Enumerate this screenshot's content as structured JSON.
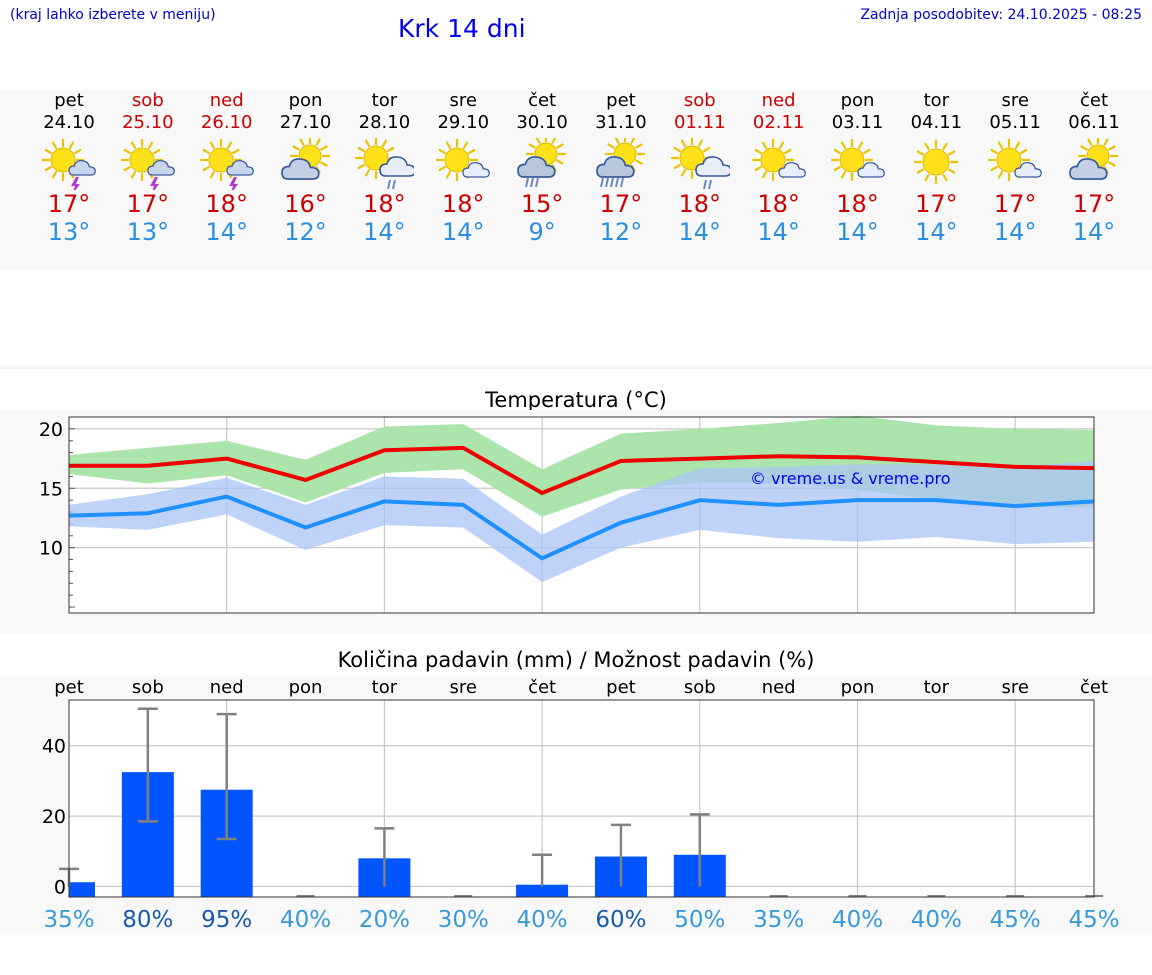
{
  "header": {
    "menu_hint": "(kraj lahko izberete v meniju)",
    "title": "Krk 14 dni",
    "updated": "Zadnja posodobitev: 24.10.2025 - 08:25"
  },
  "days": [
    {
      "name": "pet",
      "date": "24.10",
      "weekend": false,
      "icon": "sun-cloud-thunder-icon",
      "tmax": "17°",
      "tmin": "13°"
    },
    {
      "name": "sob",
      "date": "25.10",
      "weekend": true,
      "icon": "sun-cloud-thunder-icon",
      "tmax": "17°",
      "tmin": "13°"
    },
    {
      "name": "ned",
      "date": "26.10",
      "weekend": true,
      "icon": "sun-cloud-thunder-icon",
      "tmax": "18°",
      "tmin": "14°"
    },
    {
      "name": "pon",
      "date": "27.10",
      "weekend": false,
      "icon": "cloud-sun-icon",
      "tmax": "16°",
      "tmin": "12°"
    },
    {
      "name": "tor",
      "date": "28.10",
      "weekend": false,
      "icon": "sun-cloud-rain-icon",
      "tmax": "18°",
      "tmin": "14°"
    },
    {
      "name": "sre",
      "date": "29.10",
      "weekend": false,
      "icon": "sun-small-cloud-icon",
      "tmax": "18°",
      "tmin": "14°"
    },
    {
      "name": "čet",
      "date": "30.10",
      "weekend": false,
      "icon": "cloud-sun-rain-icon",
      "tmax": "15°",
      "tmin": "9°"
    },
    {
      "name": "pet",
      "date": "31.10",
      "weekend": false,
      "icon": "cloud-sun-heavy-rain-icon",
      "tmax": "17°",
      "tmin": "12°"
    },
    {
      "name": "sob",
      "date": "01.11",
      "weekend": true,
      "icon": "sun-cloud-rain-icon",
      "tmax": "18°",
      "tmin": "14°"
    },
    {
      "name": "ned",
      "date": "02.11",
      "weekend": true,
      "icon": "sun-small-cloud-icon",
      "tmax": "18°",
      "tmin": "14°"
    },
    {
      "name": "pon",
      "date": "03.11",
      "weekend": false,
      "icon": "sun-small-cloud-icon",
      "tmax": "18°",
      "tmin": "14°"
    },
    {
      "name": "tor",
      "date": "04.11",
      "weekend": false,
      "icon": "sun-icon",
      "tmax": "17°",
      "tmin": "14°"
    },
    {
      "name": "sre",
      "date": "05.11",
      "weekend": false,
      "icon": "sun-small-cloud-icon",
      "tmax": "17°",
      "tmin": "14°"
    },
    {
      "name": "čet",
      "date": "06.11",
      "weekend": false,
      "icon": "cloud-sun-icon",
      "tmax": "17°",
      "tmin": "14°"
    }
  ],
  "colors": {
    "max_line": "#ee0000",
    "max_band": "#a8e4a8",
    "min_line": "#1e90ff",
    "min_band": "#a9c4f5",
    "bar": "#0055ff",
    "whisker": "#808080",
    "pct_low": "#3a9ad9",
    "pct_high": "#1a5aaa"
  },
  "chart_data": [
    {
      "type": "line",
      "title": "Temperatura (°C)",
      "watermark": "© vreme.us & vreme.pro",
      "x": [
        0,
        1,
        2,
        3,
        4,
        5,
        6,
        7,
        8,
        9,
        10,
        11,
        12,
        13
      ],
      "ylim": [
        4.5,
        21
      ],
      "yticks": [
        10,
        15,
        20
      ],
      "series": [
        {
          "name": "max",
          "values": [
            16.9,
            16.9,
            17.5,
            15.7,
            18.2,
            18.4,
            14.6,
            17.3,
            17.5,
            17.7,
            17.6,
            17.2,
            16.8,
            16.7
          ],
          "band_low": [
            16.2,
            15.4,
            16.1,
            13.8,
            16.3,
            16.6,
            12.6,
            14.9,
            15.5,
            15.5,
            14.9,
            14.0,
            13.4,
            13.4
          ],
          "band_high": [
            17.8,
            18.4,
            19.0,
            17.4,
            20.2,
            20.4,
            16.6,
            19.6,
            20.0,
            20.5,
            21.1,
            20.3,
            20.0,
            19.9
          ]
        },
        {
          "name": "min",
          "values": [
            12.7,
            12.9,
            14.3,
            11.7,
            13.9,
            13.6,
            9.1,
            12.1,
            14.0,
            13.6,
            14.0,
            14.0,
            13.5,
            13.9
          ],
          "band_low": [
            11.8,
            11.5,
            12.8,
            9.8,
            11.9,
            11.7,
            7.1,
            10.0,
            11.5,
            10.8,
            10.5,
            10.9,
            10.3,
            10.5
          ],
          "band_high": [
            13.6,
            14.5,
            15.9,
            13.6,
            16.0,
            15.8,
            11.1,
            14.3,
            16.7,
            16.8,
            17.0,
            17.0,
            16.8,
            17.3
          ]
        }
      ]
    },
    {
      "type": "bar",
      "title": "Količina padavin (mm) / Možnost padavin (%)",
      "categories": [
        "pet",
        "sob",
        "ned",
        "pon",
        "tor",
        "sre",
        "čet",
        "pet",
        "sob",
        "ned",
        "pon",
        "tor",
        "sre",
        "čet"
      ],
      "values": [
        1.2,
        32.5,
        27.5,
        0,
        8,
        0,
        0.5,
        8.5,
        9,
        0,
        0,
        0,
        0,
        0
      ],
      "err_low": [
        0,
        18.5,
        13.5,
        0,
        0,
        0,
        0,
        0,
        0,
        0,
        0,
        0,
        0,
        0
      ],
      "err_high": [
        5,
        50.5,
        49,
        0,
        16.5,
        0,
        9,
        17.5,
        20.5,
        0,
        0,
        0,
        0,
        0
      ],
      "ylim": [
        -3,
        53
      ],
      "yticks": [
        0,
        20,
        40
      ],
      "chance": [
        "35%",
        "80%",
        "95%",
        "40%",
        "20%",
        "30%",
        "40%",
        "60%",
        "50%",
        "35%",
        "40%",
        "40%",
        "45%",
        "45%"
      ],
      "chance_values": [
        35,
        80,
        95,
        40,
        20,
        30,
        40,
        60,
        50,
        35,
        40,
        40,
        45,
        45
      ]
    }
  ]
}
